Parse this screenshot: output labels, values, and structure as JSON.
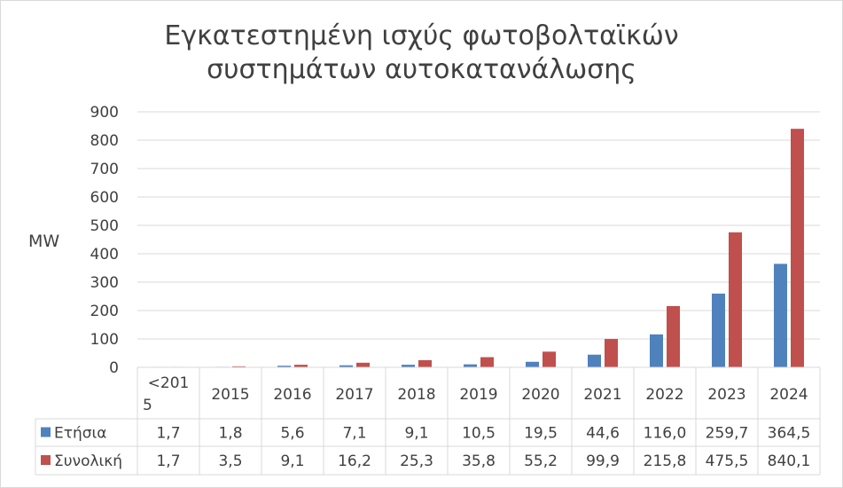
{
  "chart_data": {
    "type": "bar",
    "title_lines": [
      "Εγκατεστημένη ισχύς φωτοβολταϊκών",
      "συστημάτων αυτοκατανάλωσης"
    ],
    "ylabel": "MW",
    "xlabel": "",
    "ylim": [
      0,
      900
    ],
    "yticks": [
      "0",
      "100",
      "200",
      "300",
      "400",
      "500",
      "600",
      "700",
      "800",
      "900"
    ],
    "grid": true,
    "legend": "data-table",
    "categories": [
      "<2015",
      "2015",
      "2016",
      "2017",
      "2018",
      "2019",
      "2020",
      "2021",
      "2022",
      "2023",
      "2024"
    ],
    "series": [
      {
        "name": "Ετήσια",
        "color": "#4f81bd",
        "values": [
          1.7,
          1.8,
          5.6,
          7.1,
          9.1,
          10.5,
          19.5,
          44.6,
          116.0,
          259.7,
          364.5
        ],
        "labels": [
          "1,7",
          "1,8",
          "5,6",
          "7,1",
          "9,1",
          "10,5",
          "19,5",
          "44,6",
          "116,0",
          "259,7",
          "364,5"
        ]
      },
      {
        "name": "Συνολική",
        "color": "#c0504d",
        "values": [
          1.7,
          3.5,
          9.1,
          16.2,
          25.3,
          35.8,
          55.2,
          99.9,
          215.8,
          475.5,
          840.1
        ],
        "labels": [
          "1,7",
          "3,5",
          "9,1",
          "16,2",
          "25,3",
          "35,8",
          "55,2",
          "99,9",
          "215,8",
          "475,5",
          "840,1"
        ]
      }
    ]
  }
}
